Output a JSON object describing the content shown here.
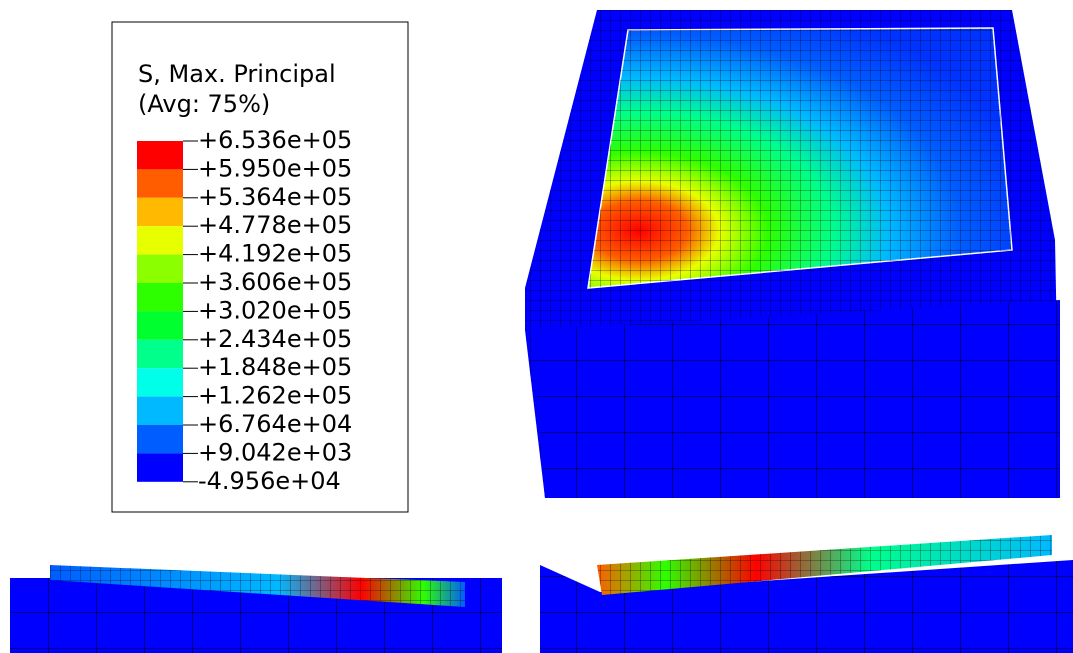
{
  "legend": {
    "title": "S, Max. Principal",
    "subtitle": "(Avg: 75%)",
    "labels": [
      "+6.536e+05",
      "+5.950e+05",
      "+5.364e+05",
      "+4.778e+05",
      "+4.192e+05",
      "+3.606e+05",
      "+3.020e+05",
      "+2.434e+05",
      "+1.848e+05",
      "+1.262e+05",
      "+6.764e+04",
      "+9.042e+03",
      "-4.956e+04"
    ],
    "colors": [
      "#ff0000",
      "#ff5d00",
      "#ffb900",
      "#e8ff00",
      "#8bff00",
      "#2eff00",
      "#00ff2e",
      "#00ff8b",
      "#00ffe8",
      "#00b9ff",
      "#005dff",
      "#0000ff"
    ]
  }
}
